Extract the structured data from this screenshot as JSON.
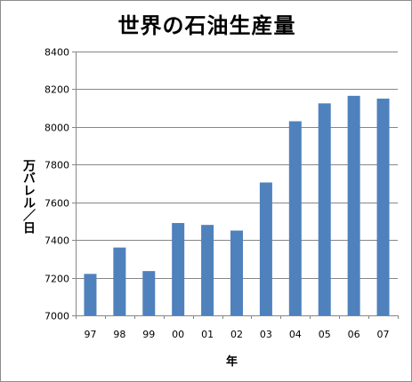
{
  "chart_data": {
    "type": "bar",
    "title": "世界の石油生産量",
    "xlabel": "年",
    "ylabel": "万バレル／日",
    "categories": [
      "97",
      "98",
      "99",
      "00",
      "01",
      "02",
      "03",
      "04",
      "05",
      "06",
      "07"
    ],
    "values": [
      7220,
      7360,
      7235,
      7490,
      7480,
      7450,
      7705,
      8030,
      8125,
      8165,
      8150
    ],
    "ylim": [
      7000,
      8400
    ],
    "yticks": [
      7000,
      7200,
      7400,
      7600,
      7800,
      8000,
      8200,
      8400
    ],
    "grid": true,
    "legend": "none",
    "bar_color": "#4f81bd"
  }
}
